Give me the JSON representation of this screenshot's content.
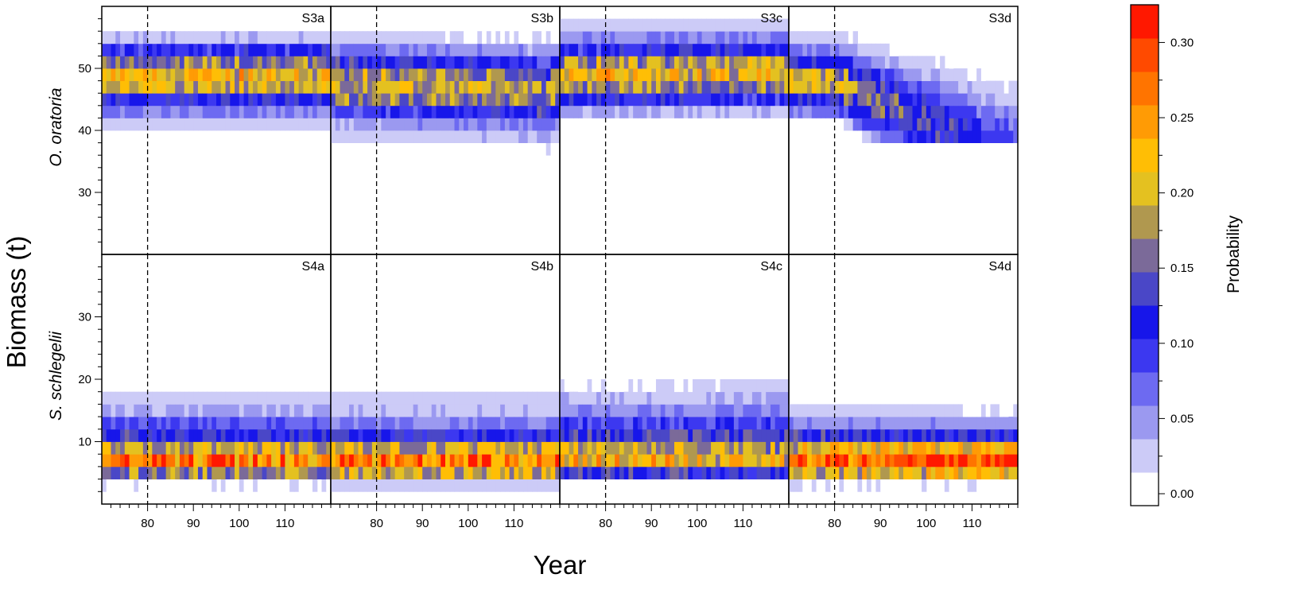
{
  "chart_data": {
    "type": "heatmap",
    "xlabel": "Year",
    "ylabel": "Biomass (t)",
    "x_ticks": [
      "80",
      "90",
      "100",
      "110"
    ],
    "xlim": [
      70,
      120
    ],
    "vline_x": 80,
    "rows": [
      {
        "label": "O. oratoria",
        "ylim": [
          20,
          60
        ],
        "y_ticks": [
          "30",
          "40",
          "50"
        ],
        "bin_width": 2,
        "panels": [
          {
            "label": "S3a",
            "profile": [
              [
                40,
                0.03
              ],
              [
                42,
                0.07
              ],
              [
                44,
                0.12
              ],
              [
                46,
                0.2
              ],
              [
                48,
                0.22
              ],
              [
                50,
                0.17
              ],
              [
                52,
                0.11
              ],
              [
                54,
                0.04
              ]
            ],
            "drift": 0,
            "spread": 1.0
          },
          {
            "label": "S3b",
            "profile": [
              [
                38,
                0.03
              ],
              [
                40,
                0.05
              ],
              [
                42,
                0.1
              ],
              [
                44,
                0.17
              ],
              [
                46,
                0.2
              ],
              [
                48,
                0.19
              ],
              [
                50,
                0.13
              ],
              [
                52,
                0.07
              ],
              [
                54,
                0.03
              ]
            ],
            "drift": -1.0,
            "spread": 1.05
          },
          {
            "label": "S3c",
            "profile": [
              [
                42,
                0.05
              ],
              [
                44,
                0.12
              ],
              [
                46,
                0.18
              ],
              [
                48,
                0.22
              ],
              [
                50,
                0.19
              ],
              [
                52,
                0.11
              ],
              [
                54,
                0.06
              ],
              [
                56,
                0.03
              ]
            ],
            "drift": 0.5,
            "spread": 1.0
          },
          {
            "label": "S3d",
            "profile": [
              [
                42,
                0.07
              ],
              [
                44,
                0.13
              ],
              [
                46,
                0.2
              ],
              [
                48,
                0.2
              ],
              [
                50,
                0.14
              ],
              [
                52,
                0.07
              ],
              [
                54,
                0.03
              ]
            ],
            "drift": -13,
            "spread": 1.9
          }
        ]
      },
      {
        "label": "S. schlegelii",
        "ylim": [
          0,
          40
        ],
        "y_ticks": [
          "10",
          "20",
          "30"
        ],
        "bin_width": 2,
        "panels": [
          {
            "label": "S4a",
            "profile": [
              [
                2,
                0.02
              ],
              [
                4,
                0.18
              ],
              [
                6,
                0.27
              ],
              [
                8,
                0.2
              ],
              [
                10,
                0.13
              ],
              [
                12,
                0.09
              ],
              [
                14,
                0.05
              ],
              [
                16,
                0.03
              ],
              [
                18,
                0.01
              ]
            ],
            "drift": 0,
            "spread": 1.0
          },
          {
            "label": "S4b",
            "profile": [
              [
                2,
                0.03
              ],
              [
                4,
                0.2
              ],
              [
                6,
                0.28
              ],
              [
                8,
                0.2
              ],
              [
                10,
                0.12
              ],
              [
                12,
                0.07
              ],
              [
                14,
                0.04
              ],
              [
                16,
                0.03
              ],
              [
                18,
                0.01
              ]
            ],
            "drift": 0,
            "spread": 1.0
          },
          {
            "label": "S4c",
            "profile": [
              [
                4,
                0.14
              ],
              [
                6,
                0.24
              ],
              [
                8,
                0.2
              ],
              [
                10,
                0.14
              ],
              [
                12,
                0.1
              ],
              [
                14,
                0.06
              ],
              [
                16,
                0.04
              ],
              [
                18,
                0.02
              ],
              [
                20,
                0.01
              ]
            ],
            "drift": 0.5,
            "spread": 1.1
          },
          {
            "label": "S4d",
            "profile": [
              [
                2,
                0.02
              ],
              [
                4,
                0.2
              ],
              [
                6,
                0.3
              ],
              [
                8,
                0.22
              ],
              [
                10,
                0.13
              ],
              [
                12,
                0.06
              ],
              [
                14,
                0.03
              ],
              [
                16,
                0.01
              ]
            ],
            "drift": -0.3,
            "spread": 0.9
          }
        ]
      }
    ],
    "colorbar": {
      "title": "Probability",
      "ticks": [
        "0.00",
        "0.05",
        "0.10",
        "0.15",
        "0.20",
        "0.25",
        "0.30"
      ],
      "range": [
        0,
        0.333
      ],
      "colors": [
        "#ffffff",
        "#cccbf7",
        "#9b99f0",
        "#6d6af1",
        "#3c38f0",
        "#1716ea",
        "#4a47c7",
        "#7b6a99",
        "#b0984f",
        "#e4c120",
        "#ffbe05",
        "#ff9b05",
        "#ff7400",
        "#ff4a00",
        "#ff1800"
      ]
    }
  }
}
